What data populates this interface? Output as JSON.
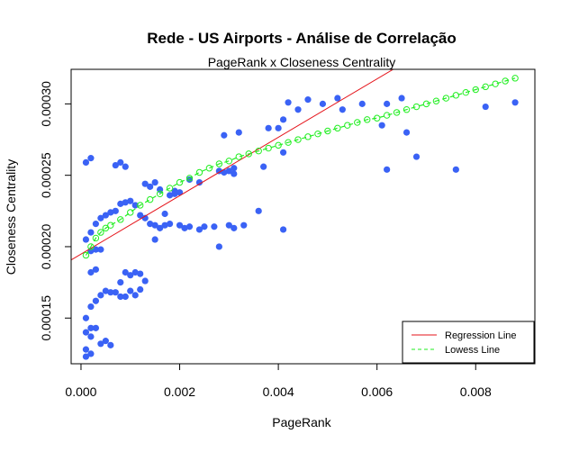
{
  "chart_data": {
    "type": "scatter",
    "title": "Rede - US Airports - Análise de Correlação",
    "subtitle": "PageRank x Closeness Centrality",
    "xlabel": "PageRank",
    "ylabel": "Closeness Centrality",
    "xlim": [
      -0.0002,
      0.0092
    ],
    "ylim": [
      0.000118,
      0.0003242
    ],
    "x_ticks": [
      {
        "value": 0.0,
        "label": "0.000"
      },
      {
        "value": 0.002,
        "label": "0.002"
      },
      {
        "value": 0.004,
        "label": "0.004"
      },
      {
        "value": 0.006,
        "label": "0.006"
      },
      {
        "value": 0.008,
        "label": "0.008"
      }
    ],
    "y_ticks": [
      {
        "value": 0.00015,
        "label": "0.00015"
      },
      {
        "value": 0.0002,
        "label": "0.00020"
      },
      {
        "value": 0.00025,
        "label": "0.00025"
      },
      {
        "value": 0.0003,
        "label": "0.00030"
      }
    ],
    "colors": {
      "points": "#3a62f5",
      "regression": "#e5131a",
      "lowess": "#22ee22"
    },
    "series": [
      {
        "name": "Airports",
        "kind": "points",
        "x": [
          0.0088,
          0.0082,
          0.0076,
          0.0068,
          0.0062,
          0.0062,
          0.0061,
          0.0066,
          0.0065,
          0.0057,
          0.0053,
          0.0052,
          0.0049,
          0.0046,
          0.0044,
          0.0042,
          0.004,
          0.0041,
          0.0041,
          0.0038,
          0.0036,
          0.0032,
          0.0033,
          0.0031,
          0.0029,
          0.003,
          0.0028,
          0.0027,
          0.0025,
          0.0024,
          0.0022,
          0.0021,
          0.002,
          0.0018,
          0.0017,
          0.0016,
          0.0015,
          0.0014,
          0.0013,
          0.0012,
          0.0011,
          0.001,
          0.0009,
          0.0008,
          0.0007,
          0.0006,
          0.0005,
          0.0004,
          0.0003,
          0.0002,
          0.0001,
          0.0037,
          0.0041,
          0.0031,
          0.0029,
          0.0028,
          0.0031,
          0.003,
          0.0024,
          0.0022,
          0.002,
          0.0019,
          0.0018,
          0.0017,
          0.0015,
          0.0013,
          0.0012,
          0.0011,
          0.001,
          0.0009,
          0.0008,
          0.0007,
          0.0006,
          0.0005,
          0.0004,
          0.0003,
          0.0002,
          0.0001,
          0.0003,
          0.0002,
          0.0001,
          0.0006,
          0.0005,
          0.0004,
          0.0002,
          0.0001,
          0.0002,
          0.0003,
          0.0008,
          0.0009,
          0.001,
          0.0011,
          0.0012,
          0.0002,
          0.0003,
          0.0004,
          0.0001,
          0.0002,
          0.0015,
          0.0014,
          0.0013,
          0.0016,
          0.0019,
          0.0002,
          0.0001,
          0.0007,
          0.0008,
          0.0009
        ],
        "y": [
          0.000301,
          0.000298,
          0.000254,
          0.000263,
          0.000254,
          0.0003,
          0.000285,
          0.00028,
          0.000304,
          0.0003,
          0.000296,
          0.000304,
          0.0003,
          0.000303,
          0.000296,
          0.000301,
          0.000283,
          0.000289,
          0.000212,
          0.000283,
          0.000225,
          0.00028,
          0.000215,
          0.000213,
          0.000278,
          0.000215,
          0.0002,
          0.000214,
          0.000214,
          0.000212,
          0.000214,
          0.000213,
          0.000215,
          0.000216,
          0.000215,
          0.000213,
          0.000215,
          0.000216,
          0.00022,
          0.000222,
          0.000229,
          0.000232,
          0.000231,
          0.00023,
          0.000225,
          0.000224,
          0.000222,
          0.00022,
          0.000216,
          0.00021,
          0.000205,
          0.000256,
          0.000266,
          0.000251,
          0.000252,
          0.000253,
          0.000255,
          0.000253,
          0.000245,
          0.000247,
          0.000238,
          0.000237,
          0.000236,
          0.000223,
          0.000205,
          0.000176,
          0.00017,
          0.000166,
          0.000169,
          0.000165,
          0.000165,
          0.000168,
          0.000168,
          0.000169,
          0.000166,
          0.000162,
          0.000158,
          0.00015,
          0.000143,
          0.000137,
          0.000128,
          0.000131,
          0.000134,
          0.000132,
          0.000143,
          0.00014,
          0.000182,
          0.000184,
          0.000175,
          0.000182,
          0.00018,
          0.000182,
          0.000181,
          0.000197,
          0.000198,
          0.000198,
          0.000123,
          0.000125,
          0.000245,
          0.000242,
          0.000244,
          0.00024,
          0.000239,
          0.000262,
          0.000259,
          0.000257,
          0.000259,
          0.000256
        ]
      },
      {
        "name": "Regression Line",
        "kind": "line",
        "intercept": 0.0001948,
        "slope": 0.02045
      },
      {
        "name": "Lowess Line",
        "kind": "lowess",
        "x": [
          0.0001,
          0.0002,
          0.0003,
          0.0004,
          0.0005,
          0.0006,
          0.0008,
          0.001,
          0.0012,
          0.0014,
          0.0016,
          0.0018,
          0.002,
          0.0022,
          0.0024,
          0.0026,
          0.0028,
          0.003,
          0.0032,
          0.0034,
          0.0036,
          0.0038,
          0.004,
          0.0042,
          0.0044,
          0.0046,
          0.0048,
          0.005,
          0.0052,
          0.0054,
          0.0056,
          0.0058,
          0.006,
          0.0062,
          0.0064,
          0.0066,
          0.0068,
          0.007,
          0.0072,
          0.0074,
          0.0076,
          0.0078,
          0.008,
          0.0082,
          0.0084,
          0.0086,
          0.0088
        ],
        "y": [
          0.000194,
          0.0002,
          0.000206,
          0.00021,
          0.000213,
          0.000215,
          0.000219,
          0.000224,
          0.000229,
          0.000233,
          0.000237,
          0.000241,
          0.000245,
          0.000248,
          0.000252,
          0.000255,
          0.000258,
          0.00026,
          0.000263,
          0.000265,
          0.000267,
          0.000269,
          0.000271,
          0.000273,
          0.000275,
          0.000277,
          0.000279,
          0.000281,
          0.000283,
          0.000285,
          0.000287,
          0.000289,
          0.00029,
          0.000292,
          0.000294,
          0.000296,
          0.000298,
          0.0003,
          0.000302,
          0.000304,
          0.000306,
          0.000308,
          0.00031,
          0.000312,
          0.000314,
          0.000316,
          0.000318
        ]
      }
    ],
    "legend": {
      "position": "bottom-right",
      "entries": [
        {
          "label": "Regression Line",
          "style": "solid",
          "color": "#e5131a"
        },
        {
          "label": "Lowess Line",
          "style": "dashed",
          "color": "#22ee22"
        }
      ]
    }
  }
}
